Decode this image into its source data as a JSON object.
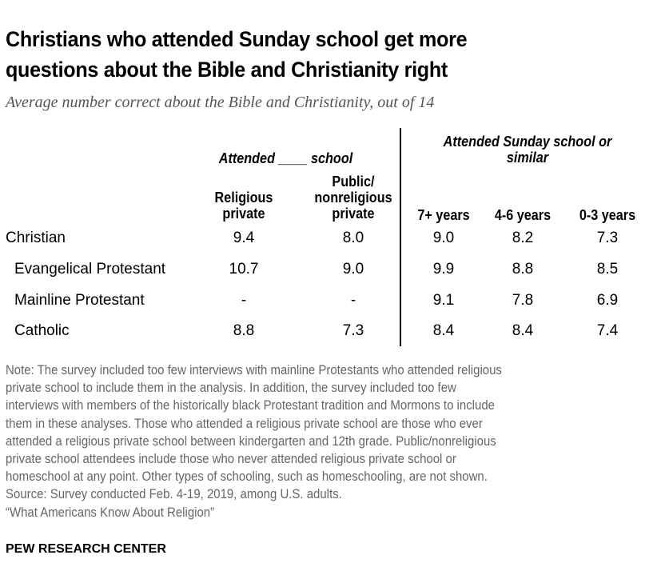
{
  "title_lines": [
    "Christians who attended Sunday school get more",
    "questions about the Bible and Christianity right"
  ],
  "subtitle": "Average number correct about the Bible and Christianity, out of 14",
  "chart_data": {
    "type": "table",
    "group_headers": [
      "Attended ____ school",
      "Attended Sunday school or similar"
    ],
    "columns": [
      "Religious private",
      "Public/ nonreligious private",
      "7+ years",
      "4-6 years",
      "0-3 years"
    ],
    "rows": [
      {
        "label": "Christian",
        "values": [
          "9.4",
          "8.0",
          "9.0",
          "8.2",
          "7.3"
        ]
      },
      {
        "label": "Evangelical Protestant",
        "values": [
          "10.7",
          "9.0",
          "9.9",
          "8.8",
          "8.5"
        ]
      },
      {
        "label": "Mainline Protestant",
        "values": [
          "-",
          "-",
          "9.1",
          "7.8",
          "6.9"
        ]
      },
      {
        "label": "Catholic",
        "values": [
          "8.8",
          "7.3",
          "8.4",
          "8.4",
          "7.4"
        ]
      }
    ]
  },
  "headers": {
    "group1": "Attended ____ school",
    "group2_l1": "Attended Sunday school or",
    "group2_l2": "similar",
    "col1_l1": "Religious",
    "col1_l2": "private",
    "col2_l1": "Public/",
    "col2_l2": "nonreligious",
    "col2_l3": "private",
    "col3": "7+ years",
    "col4": "4-6 years",
    "col5": "0-3 years"
  },
  "note_lines": [
    "Note: The survey included too few interviews with mainline Protestants who attended religious",
    "private school to include them in the analysis. In addition, the survey included too few",
    "interviews with members of the historically black Protestant tradition and Mormons to include",
    "them in these analyses. Those who attended a religious private school are those who ever",
    "attended a religious private school between kindergarten and 12th grade. Public/nonreligious",
    "private school attendees include those who never attended religious private school or",
    "homeschool at any point. Other types of schooling, such as homeschooling, are not shown.",
    "Source: Survey conducted Feb. 4-19, 2019, among U.S. adults.",
    "“What Americans Know About Religion”"
  ],
  "footer": "PEW RESEARCH CENTER"
}
